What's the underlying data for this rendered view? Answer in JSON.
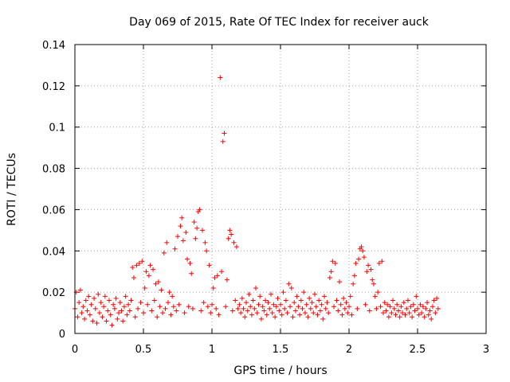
{
  "chart_data": {
    "type": "scatter",
    "title": "Day 069 of 2015, Rate Of TEC Index for receiver auck",
    "xlabel": "GPS time / hours",
    "ylabel": "ROTI / TECUs",
    "xlim": [
      0,
      3
    ],
    "ylim": [
      0,
      0.14
    ],
    "x_ticks": [
      "0",
      "0.5",
      "1",
      "1.5",
      "2",
      "2.5",
      "3"
    ],
    "y_ticks": [
      "0",
      "0.02",
      "0.04",
      "0.06",
      "0.08",
      "0.1",
      "0.12",
      "0.14"
    ],
    "grid": true,
    "marker": "+",
    "color": "#ff0000",
    "series": [
      {
        "points": [
          [
            0.0,
            0.012
          ],
          [
            0.01,
            0.02
          ],
          [
            0.02,
            0.008
          ],
          [
            0.03,
            0.015
          ],
          [
            0.04,
            0.021
          ],
          [
            0.05,
            0.01
          ],
          [
            0.06,
            0.013
          ],
          [
            0.07,
            0.007
          ],
          [
            0.08,
            0.016
          ],
          [
            0.09,
            0.011
          ],
          [
            0.1,
            0.018
          ],
          [
            0.11,
            0.009
          ],
          [
            0.12,
            0.014
          ],
          [
            0.13,
            0.006
          ],
          [
            0.14,
            0.017
          ],
          [
            0.15,
            0.012
          ],
          [
            0.16,
            0.005
          ],
          [
            0.17,
            0.019
          ],
          [
            0.18,
            0.01
          ],
          [
            0.19,
            0.015
          ],
          [
            0.2,
            0.008
          ],
          [
            0.21,
            0.013
          ],
          [
            0.22,
            0.018
          ],
          [
            0.23,
            0.006
          ],
          [
            0.24,
            0.011
          ],
          [
            0.25,
            0.016
          ],
          [
            0.26,
            0.009
          ],
          [
            0.27,
            0.004
          ],
          [
            0.28,
            0.014
          ],
          [
            0.29,
            0.012
          ],
          [
            0.3,
            0.017
          ],
          [
            0.31,
            0.007
          ],
          [
            0.32,
            0.01
          ],
          [
            0.33,
            0.015
          ],
          [
            0.34,
            0.011
          ],
          [
            0.35,
            0.006
          ],
          [
            0.36,
            0.013
          ],
          [
            0.37,
            0.018
          ],
          [
            0.38,
            0.009
          ],
          [
            0.39,
            0.014
          ],
          [
            0.4,
            0.011
          ],
          [
            0.41,
            0.016
          ],
          [
            0.42,
            0.032
          ],
          [
            0.43,
            0.027
          ],
          [
            0.44,
            0.008
          ],
          [
            0.45,
            0.033
          ],
          [
            0.46,
            0.012
          ],
          [
            0.47,
            0.034
          ],
          [
            0.48,
            0.015
          ],
          [
            0.49,
            0.035
          ],
          [
            0.5,
            0.01
          ],
          [
            0.51,
            0.022
          ],
          [
            0.52,
            0.03
          ],
          [
            0.53,
            0.014
          ],
          [
            0.54,
            0.028
          ],
          [
            0.55,
            0.033
          ],
          [
            0.56,
            0.011
          ],
          [
            0.57,
            0.031
          ],
          [
            0.58,
            0.016
          ],
          [
            0.59,
            0.024
          ],
          [
            0.6,
            0.008
          ],
          [
            0.61,
            0.025
          ],
          [
            0.62,
            0.013
          ],
          [
            0.63,
            0.021
          ],
          [
            0.64,
            0.01
          ],
          [
            0.65,
            0.039
          ],
          [
            0.66,
            0.012
          ],
          [
            0.67,
            0.044
          ],
          [
            0.68,
            0.015
          ],
          [
            0.69,
            0.02
          ],
          [
            0.7,
            0.009
          ],
          [
            0.71,
            0.018
          ],
          [
            0.72,
            0.013
          ],
          [
            0.73,
            0.041
          ],
          [
            0.74,
            0.011
          ],
          [
            0.75,
            0.047
          ],
          [
            0.76,
            0.014
          ],
          [
            0.77,
            0.052
          ],
          [
            0.78,
            0.056
          ],
          [
            0.79,
            0.045
          ],
          [
            0.8,
            0.01
          ],
          [
            0.81,
            0.049
          ],
          [
            0.82,
            0.036
          ],
          [
            0.83,
            0.013
          ],
          [
            0.84,
            0.034
          ],
          [
            0.85,
            0.029
          ],
          [
            0.86,
            0.012
          ],
          [
            0.87,
            0.054
          ],
          [
            0.88,
            0.046
          ],
          [
            0.89,
            0.051
          ],
          [
            0.9,
            0.059
          ],
          [
            0.91,
            0.06
          ],
          [
            0.92,
            0.011
          ],
          [
            0.93,
            0.05
          ],
          [
            0.94,
            0.015
          ],
          [
            0.95,
            0.044
          ],
          [
            0.96,
            0.04
          ],
          [
            0.97,
            0.013
          ],
          [
            0.98,
            0.033
          ],
          [
            0.99,
            0.01
          ],
          [
            1.0,
            0.014
          ],
          [
            1.01,
            0.022
          ],
          [
            1.02,
            0.027
          ],
          [
            1.03,
            0.012
          ],
          [
            1.04,
            0.028
          ],
          [
            1.05,
            0.009
          ],
          [
            1.06,
            0.124
          ],
          [
            1.07,
            0.03
          ],
          [
            1.08,
            0.093
          ],
          [
            1.09,
            0.097
          ],
          [
            1.1,
            0.013
          ],
          [
            1.11,
            0.026
          ],
          [
            1.12,
            0.046
          ],
          [
            1.13,
            0.05
          ],
          [
            1.14,
            0.048
          ],
          [
            1.15,
            0.011
          ],
          [
            1.16,
            0.044
          ],
          [
            1.17,
            0.016
          ],
          [
            1.18,
            0.042
          ],
          [
            1.19,
            0.012
          ],
          [
            1.2,
            0.014
          ],
          [
            1.21,
            0.01
          ],
          [
            1.22,
            0.017
          ],
          [
            1.23,
            0.012
          ],
          [
            1.24,
            0.008
          ],
          [
            1.25,
            0.015
          ],
          [
            1.26,
            0.011
          ],
          [
            1.27,
            0.019
          ],
          [
            1.28,
            0.013
          ],
          [
            1.29,
            0.009
          ],
          [
            1.3,
            0.016
          ],
          [
            1.31,
            0.012
          ],
          [
            1.32,
            0.022
          ],
          [
            1.33,
            0.01
          ],
          [
            1.34,
            0.014
          ],
          [
            1.35,
            0.018
          ],
          [
            1.36,
            0.007
          ],
          [
            1.37,
            0.013
          ],
          [
            1.38,
            0.011
          ],
          [
            1.39,
            0.016
          ],
          [
            1.4,
            0.009
          ],
          [
            1.41,
            0.015
          ],
          [
            1.42,
            0.012
          ],
          [
            1.43,
            0.019
          ],
          [
            1.44,
            0.01
          ],
          [
            1.45,
            0.014
          ],
          [
            1.46,
            0.008
          ],
          [
            1.47,
            0.013
          ],
          [
            1.48,
            0.017
          ],
          [
            1.49,
            0.011
          ],
          [
            1.5,
            0.014
          ],
          [
            1.51,
            0.009
          ],
          [
            1.52,
            0.02
          ],
          [
            1.53,
            0.012
          ],
          [
            1.54,
            0.016
          ],
          [
            1.55,
            0.01
          ],
          [
            1.56,
            0.024
          ],
          [
            1.57,
            0.013
          ],
          [
            1.58,
            0.022
          ],
          [
            1.59,
            0.008
          ],
          [
            1.6,
            0.015
          ],
          [
            1.61,
            0.011
          ],
          [
            1.62,
            0.018
          ],
          [
            1.63,
            0.013
          ],
          [
            1.64,
            0.009
          ],
          [
            1.65,
            0.016
          ],
          [
            1.66,
            0.012
          ],
          [
            1.67,
            0.02
          ],
          [
            1.68,
            0.01
          ],
          [
            1.69,
            0.014
          ],
          [
            1.7,
            0.008
          ],
          [
            1.71,
            0.017
          ],
          [
            1.72,
            0.012
          ],
          [
            1.73,
            0.015
          ],
          [
            1.74,
            0.01
          ],
          [
            1.75,
            0.019
          ],
          [
            1.76,
            0.013
          ],
          [
            1.77,
            0.009
          ],
          [
            1.78,
            0.016
          ],
          [
            1.79,
            0.011
          ],
          [
            1.8,
            0.014
          ],
          [
            1.81,
            0.007
          ],
          [
            1.82,
            0.018
          ],
          [
            1.83,
            0.012
          ],
          [
            1.84,
            0.015
          ],
          [
            1.85,
            0.01
          ],
          [
            1.86,
            0.027
          ],
          [
            1.87,
            0.03
          ],
          [
            1.88,
            0.035
          ],
          [
            1.89,
            0.013
          ],
          [
            1.9,
            0.034
          ],
          [
            1.91,
            0.016
          ],
          [
            1.92,
            0.011
          ],
          [
            1.93,
            0.025
          ],
          [
            1.94,
            0.014
          ],
          [
            1.95,
            0.009
          ],
          [
            1.96,
            0.017
          ],
          [
            1.97,
            0.012
          ],
          [
            1.98,
            0.015
          ],
          [
            1.99,
            0.01
          ],
          [
            2.0,
            0.013
          ],
          [
            2.01,
            0.018
          ],
          [
            2.02,
            0.009
          ],
          [
            2.03,
            0.024
          ],
          [
            2.04,
            0.028
          ],
          [
            2.05,
            0.034
          ],
          [
            2.06,
            0.012
          ],
          [
            2.07,
            0.036
          ],
          [
            2.08,
            0.041
          ],
          [
            2.09,
            0.042
          ],
          [
            2.1,
            0.04
          ],
          [
            2.11,
            0.037
          ],
          [
            2.12,
            0.014
          ],
          [
            2.13,
            0.03
          ],
          [
            2.14,
            0.033
          ],
          [
            2.15,
            0.011
          ],
          [
            2.16,
            0.031
          ],
          [
            2.17,
            0.026
          ],
          [
            2.18,
            0.024
          ],
          [
            2.19,
            0.018
          ],
          [
            2.2,
            0.012
          ],
          [
            2.21,
            0.02
          ],
          [
            2.22,
            0.034
          ],
          [
            2.23,
            0.013
          ],
          [
            2.24,
            0.035
          ],
          [
            2.25,
            0.01
          ],
          [
            2.26,
            0.015
          ],
          [
            2.27,
            0.011
          ],
          [
            2.28,
            0.014
          ],
          [
            2.29,
            0.008
          ],
          [
            2.3,
            0.013
          ],
          [
            2.31,
            0.01
          ],
          [
            2.32,
            0.016
          ],
          [
            2.33,
            0.012
          ],
          [
            2.34,
            0.009
          ],
          [
            2.35,
            0.014
          ],
          [
            2.36,
            0.011
          ],
          [
            2.37,
            0.008
          ],
          [
            2.38,
            0.013
          ],
          [
            2.39,
            0.01
          ],
          [
            2.4,
            0.015
          ],
          [
            2.41,
            0.009
          ],
          [
            2.42,
            0.012
          ],
          [
            2.43,
            0.016
          ],
          [
            2.44,
            0.01
          ],
          [
            2.45,
            0.013
          ],
          [
            2.46,
            0.008
          ],
          [
            2.47,
            0.014
          ],
          [
            2.48,
            0.011
          ],
          [
            2.49,
            0.018
          ],
          [
            2.5,
            0.012
          ],
          [
            2.51,
            0.009
          ],
          [
            2.52,
            0.014
          ],
          [
            2.53,
            0.01
          ],
          [
            2.54,
            0.013
          ],
          [
            2.55,
            0.008
          ],
          [
            2.56,
            0.012
          ],
          [
            2.57,
            0.015
          ],
          [
            2.58,
            0.009
          ],
          [
            2.59,
            0.011
          ],
          [
            2.6,
            0.007
          ],
          [
            2.61,
            0.013
          ],
          [
            2.62,
            0.016
          ],
          [
            2.63,
            0.01
          ],
          [
            2.64,
            0.017
          ],
          [
            2.65,
            0.012
          ]
        ]
      }
    ]
  }
}
